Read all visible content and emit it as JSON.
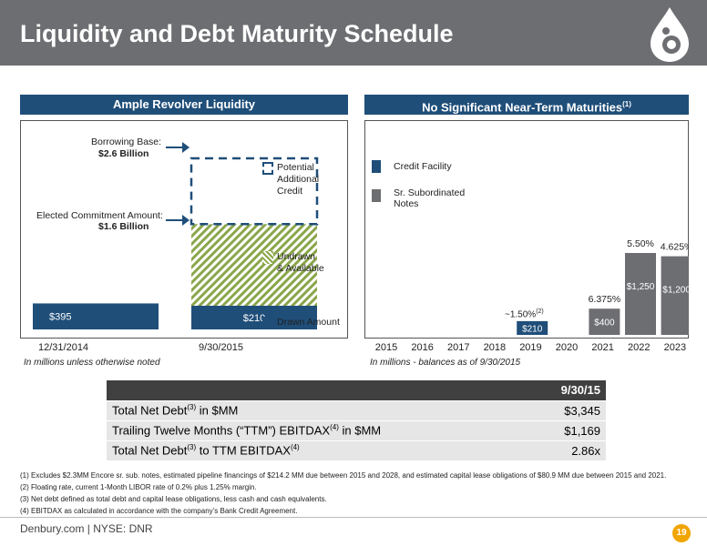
{
  "page": {
    "title": "Liquidity and Debt Maturity Schedule",
    "footer": "Denbury.com | NYSE: DNR",
    "page_number": "19"
  },
  "left_panel": {
    "header": "Ample Revolver Liquidity",
    "borrowing_base_label": "Borrowing Base:",
    "borrowing_base_value": "$2.6 Billion",
    "commitment_label": "Elected Commitment Amount:",
    "commitment_value": "$1.6 Billion",
    "legend_potential": [
      "Potential",
      "Additional",
      "Credit"
    ],
    "legend_undrawn": [
      "Undrawn",
      "& Available"
    ],
    "legend_drawn": "Drawn Amount",
    "note": "In millions unless otherwise noted",
    "colors": {
      "drawn": "#1f4e79",
      "undrawn_stripe": "#8aa64a",
      "potential_border": "#1f4e79"
    }
  },
  "right_panel": {
    "header_main": "No Significant Near-Term Maturities",
    "header_sup": "(1)",
    "legend_credit": "Credit Facility",
    "legend_notes": [
      "Sr. Subordinated",
      "Notes"
    ],
    "note": "In millions - balances as of 9/30/2015",
    "rate_2019_main": "~1.50%",
    "rate_2019_sup": "(2)",
    "colors": {
      "credit": "#1f4e79",
      "notes": "#6d6e71"
    }
  },
  "chart_data": [
    {
      "type": "bar",
      "categories": [
        "12/31/2014",
        "9/30/2015"
      ],
      "series": [
        {
          "name": "Drawn Amount",
          "values": [
            395,
            210
          ],
          "labels": [
            "$395",
            "$210"
          ]
        },
        {
          "name": "Undrawn & Available",
          "values": [
            0,
            1390
          ]
        },
        {
          "name": "Potential Additional Credit",
          "values": [
            0,
            1000
          ]
        }
      ],
      "annotations": [
        {
          "text": "Borrowing Base: $2.6 Billion",
          "value": 2600
        },
        {
          "text": "Elected Commitment Amount: $1.6 Billion",
          "value": 1600
        }
      ],
      "ylim": [
        0,
        2800
      ]
    },
    {
      "type": "bar",
      "categories": [
        "2015",
        "2016",
        "2017",
        "2018",
        "2019",
        "2020",
        "2021",
        "2022",
        "2023"
      ],
      "series": [
        {
          "name": "Credit Facility",
          "values": [
            0,
            0,
            0,
            0,
            210,
            0,
            0,
            0,
            0
          ]
        },
        {
          "name": "Sr. Subordinated Notes",
          "values": [
            0,
            0,
            0,
            0,
            0,
            0,
            400,
            1250,
            1200
          ]
        }
      ],
      "bar_labels": {
        "2019": "$210",
        "2021": "$400",
        "2022": "$1,250",
        "2023": "$1,200"
      },
      "rate_labels": {
        "2021": "6.375%",
        "2022": "5.50%",
        "2023": "4.625%"
      },
      "ylim": [
        0,
        1600
      ]
    }
  ],
  "summary_table": {
    "header": "9/30/15",
    "rows": [
      {
        "label_pre": "Total Net Debt",
        "label_sup": "(3)",
        "label_post": " in $MM",
        "value": "$3,345"
      },
      {
        "label_pre": "Trailing Twelve Months (“TTM”) EBITDAX",
        "label_sup": "(4)",
        "label_post": " in $MM",
        "value": "$1,169"
      },
      {
        "label_pre": "Total Net Debt",
        "label_sup": "(3)",
        "label_post": " to TTM EBITDAX",
        "label_sup2": "(4)",
        "value": "2.86x"
      }
    ]
  },
  "footnotes": [
    "(1)  Excludes $2.3MM Encore sr. sub. notes, estimated pipeline financings of $214.2 MM due between 2015 and 2028, and estimated capital lease obligations of $80.9 MM due between 2015 and 2021.",
    "(2)  Floating rate, current 1-Month LIBOR rate of 0.2% plus 1.25% margin.",
    "(3)  Net debt defined as total debt and capital lease obligations, less cash and cash equivalents.",
    "(4)  EBITDAX as calculated in accordance with the company’s Bank Credit Agreement."
  ]
}
